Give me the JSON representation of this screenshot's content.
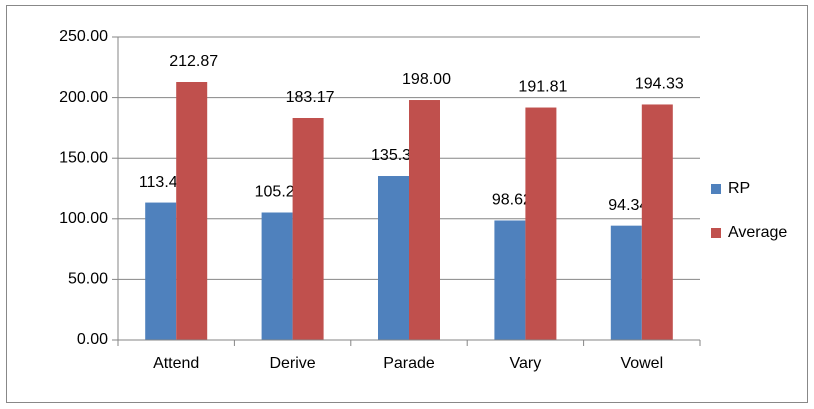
{
  "chart_data": {
    "type": "bar",
    "categories": [
      "Attend",
      "Derive",
      "Parade",
      "Vary",
      "Vowel"
    ],
    "series": [
      {
        "name": "RP",
        "color": "#4f81bd",
        "values": [
          113.4,
          105.2,
          135.3,
          98.62,
          94.34
        ],
        "value_labels": [
          "113.40",
          "105.20",
          "135.30",
          "98.62",
          "94.34"
        ]
      },
      {
        "name": "Average",
        "color": "#c0504d",
        "values": [
          212.87,
          183.17,
          198,
          191.81,
          194.33
        ],
        "value_labels": [
          "212.87",
          "183.17",
          "198.00",
          "191.81",
          "194.33"
        ]
      }
    ],
    "ylim": [
      0,
      250
    ],
    "yticks": [
      {
        "value": 0,
        "label": "0.00"
      },
      {
        "value": 50,
        "label": "50.00"
      },
      {
        "value": 100,
        "label": "100.00"
      },
      {
        "value": 150,
        "label": "150.00"
      },
      {
        "value": 200,
        "label": "200.00"
      },
      {
        "value": 250,
        "label": "250.00"
      }
    ],
    "grid": true,
    "legend": "right"
  }
}
